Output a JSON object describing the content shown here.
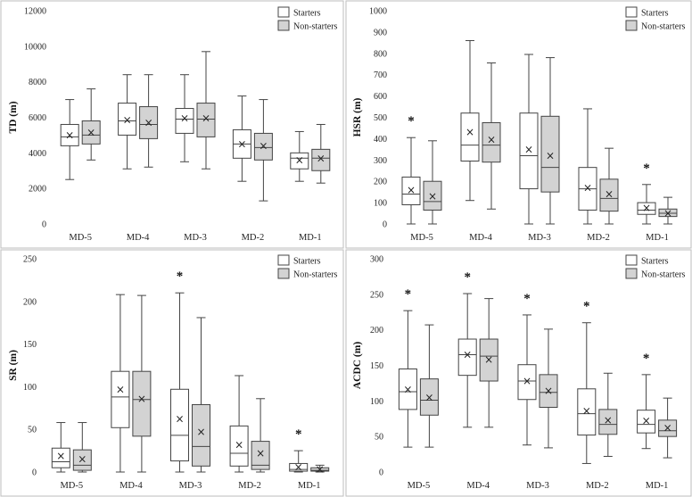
{
  "chart_data": [
    {
      "type": "box",
      "ylabel": "TD (m)",
      "ylim": [
        0,
        12000
      ],
      "yticks": [
        0,
        2000,
        4000,
        6000,
        8000,
        10000,
        12000
      ],
      "categories": [
        "MD-5",
        "MD-4",
        "MD-3",
        "MD-2",
        "MD-1"
      ],
      "legend": {
        "position": "top-right",
        "entries": [
          "Starters",
          "Non-starters"
        ]
      },
      "series": [
        {
          "name": "Starters",
          "color": "#ffffff",
          "boxes": [
            {
              "min": 2500,
              "q1": 4400,
              "median": 4900,
              "q3": 5600,
              "max": 7000,
              "mean": 5000
            },
            {
              "min": 3100,
              "q1": 5000,
              "median": 5800,
              "q3": 6800,
              "max": 8400,
              "mean": 5850
            },
            {
              "min": 3500,
              "q1": 5100,
              "median": 5900,
              "q3": 6500,
              "max": 8400,
              "mean": 5950
            },
            {
              "min": 2400,
              "q1": 3700,
              "median": 4500,
              "q3": 5300,
              "max": 7200,
              "mean": 4500
            },
            {
              "min": 2400,
              "q1": 3100,
              "median": 3700,
              "q3": 4000,
              "max": 5200,
              "mean": 3600
            }
          ]
        },
        {
          "name": "Non-starters",
          "color": "#d3d3d3",
          "boxes": [
            {
              "min": 3600,
              "q1": 4500,
              "median": 5000,
              "q3": 5800,
              "max": 7600,
              "mean": 5150
            },
            {
              "min": 3200,
              "q1": 4800,
              "median": 5600,
              "q3": 6600,
              "max": 8400,
              "mean": 5700
            },
            {
              "min": 3100,
              "q1": 4900,
              "median": 5900,
              "q3": 6800,
              "max": 9700,
              "mean": 5950
            },
            {
              "min": 1300,
              "q1": 3600,
              "median": 4300,
              "q3": 5100,
              "max": 7000,
              "mean": 4400
            },
            {
              "min": 2300,
              "q1": 3000,
              "median": 3700,
              "q3": 4200,
              "max": 5600,
              "mean": 3700
            }
          ]
        }
      ],
      "significance": []
    },
    {
      "type": "box",
      "ylabel": "HSR (m)",
      "ylim": [
        0,
        1000
      ],
      "yticks": [
        0,
        100,
        200,
        300,
        400,
        500,
        600,
        700,
        800,
        900,
        1000
      ],
      "categories": [
        "MD-5",
        "MD-4",
        "MD-3",
        "MD-2",
        "MD-1"
      ],
      "legend": {
        "position": "top-right",
        "entries": [
          "Starters",
          "Non-starters"
        ]
      },
      "series": [
        {
          "name": "Starters",
          "color": "#ffffff",
          "boxes": [
            {
              "min": 0,
              "q1": 90,
              "median": 140,
              "q3": 220,
              "max": 405,
              "mean": 160
            },
            {
              "min": 110,
              "q1": 295,
              "median": 370,
              "q3": 520,
              "max": 860,
              "mean": 430
            },
            {
              "min": 0,
              "q1": 165,
              "median": 320,
              "q3": 520,
              "max": 795,
              "mean": 350
            },
            {
              "min": 0,
              "q1": 65,
              "median": 165,
              "q3": 265,
              "max": 540,
              "mean": 170
            },
            {
              "min": 0,
              "q1": 45,
              "median": 65,
              "q3": 100,
              "max": 185,
              "mean": 75
            }
          ]
        },
        {
          "name": "Non-starters",
          "color": "#d3d3d3",
          "boxes": [
            {
              "min": 0,
              "q1": 65,
              "median": 105,
              "q3": 200,
              "max": 390,
              "mean": 130
            },
            {
              "min": 70,
              "q1": 290,
              "median": 370,
              "q3": 475,
              "max": 755,
              "mean": 395
            },
            {
              "min": 0,
              "q1": 150,
              "median": 265,
              "q3": 505,
              "max": 780,
              "mean": 320
            },
            {
              "min": 0,
              "q1": 60,
              "median": 120,
              "q3": 210,
              "max": 355,
              "mean": 140
            },
            {
              "min": 0,
              "q1": 35,
              "median": 50,
              "q3": 70,
              "max": 125,
              "mean": 50
            }
          ]
        }
      ],
      "significance": [
        0,
        4
      ]
    },
    {
      "type": "box",
      "ylabel": "SR (m)",
      "ylim": [
        0,
        250
      ],
      "yticks": [
        0,
        50,
        100,
        150,
        200,
        250
      ],
      "categories": [
        "MD-5",
        "MD-4",
        "MD-3",
        "MD-2",
        "MD-1"
      ],
      "legend": {
        "position": "top-right",
        "entries": [
          "Starters",
          "Non-starters"
        ]
      },
      "series": [
        {
          "name": "Starters",
          "color": "#ffffff",
          "boxes": [
            {
              "min": 0,
              "q1": 5,
              "median": 12,
              "q3": 28,
              "max": 58,
              "mean": 19
            },
            {
              "min": 0,
              "q1": 52,
              "median": 88,
              "q3": 118,
              "max": 208,
              "mean": 97
            },
            {
              "min": 0,
              "q1": 13,
              "median": 43,
              "q3": 97,
              "max": 210,
              "mean": 62
            },
            {
              "min": 0,
              "q1": 7,
              "median": 22,
              "q3": 54,
              "max": 113,
              "mean": 32
            },
            {
              "min": 0,
              "q1": 1,
              "median": 3,
              "q3": 10,
              "max": 25,
              "mean": 6
            }
          ]
        },
        {
          "name": "Non-starters",
          "color": "#d3d3d3",
          "boxes": [
            {
              "min": 0,
              "q1": 2,
              "median": 8,
              "q3": 26,
              "max": 58,
              "mean": 15
            },
            {
              "min": 0,
              "q1": 42,
              "median": 85,
              "q3": 118,
              "max": 207,
              "mean": 86
            },
            {
              "min": 0,
              "q1": 7,
              "median": 30,
              "q3": 79,
              "max": 181,
              "mean": 47
            },
            {
              "min": 0,
              "q1": 3,
              "median": 8,
              "q3": 36,
              "max": 86,
              "mean": 22
            },
            {
              "min": 0,
              "q1": 1,
              "median": 2,
              "q3": 5,
              "max": 8,
              "mean": 3
            }
          ]
        }
      ],
      "significance": [
        2,
        4
      ]
    },
    {
      "type": "box",
      "ylabel": "ACDC (m)",
      "ylim": [
        0,
        300
      ],
      "yticks": [
        0,
        50,
        100,
        150,
        200,
        250,
        300
      ],
      "categories": [
        "MD-5",
        "MD-4",
        "MD-3",
        "MD-2",
        "MD-1"
      ],
      "legend": {
        "position": "top-right",
        "entries": [
          "Starters",
          "Non-starters"
        ]
      },
      "series": [
        {
          "name": "Starters",
          "color": "#ffffff",
          "boxes": [
            {
              "min": 35,
              "q1": 88,
              "median": 113,
              "q3": 145,
              "max": 227,
              "mean": 116
            },
            {
              "min": 63,
              "q1": 136,
              "median": 165,
              "q3": 187,
              "max": 251,
              "mean": 165
            },
            {
              "min": 38,
              "q1": 102,
              "median": 128,
              "q3": 151,
              "max": 221,
              "mean": 128
            },
            {
              "min": 12,
              "q1": 52,
              "median": 82,
              "q3": 117,
              "max": 210,
              "mean": 86
            },
            {
              "min": 33,
              "q1": 55,
              "median": 67,
              "q3": 87,
              "max": 137,
              "mean": 72
            }
          ]
        },
        {
          "name": "Non-starters",
          "color": "#d3d3d3",
          "boxes": [
            {
              "min": 35,
              "q1": 80,
              "median": 101,
              "q3": 131,
              "max": 207,
              "mean": 105
            },
            {
              "min": 63,
              "q1": 128,
              "median": 163,
              "q3": 187,
              "max": 244,
              "mean": 158
            },
            {
              "min": 34,
              "q1": 91,
              "median": 112,
              "q3": 137,
              "max": 201,
              "mean": 114
            },
            {
              "min": 22,
              "q1": 53,
              "median": 67,
              "q3": 88,
              "max": 139,
              "mean": 73
            },
            {
              "min": 20,
              "q1": 50,
              "median": 58,
              "q3": 73,
              "max": 104,
              "mean": 62
            }
          ]
        }
      ],
      "significance": [
        0,
        1,
        2,
        3,
        4
      ]
    }
  ]
}
